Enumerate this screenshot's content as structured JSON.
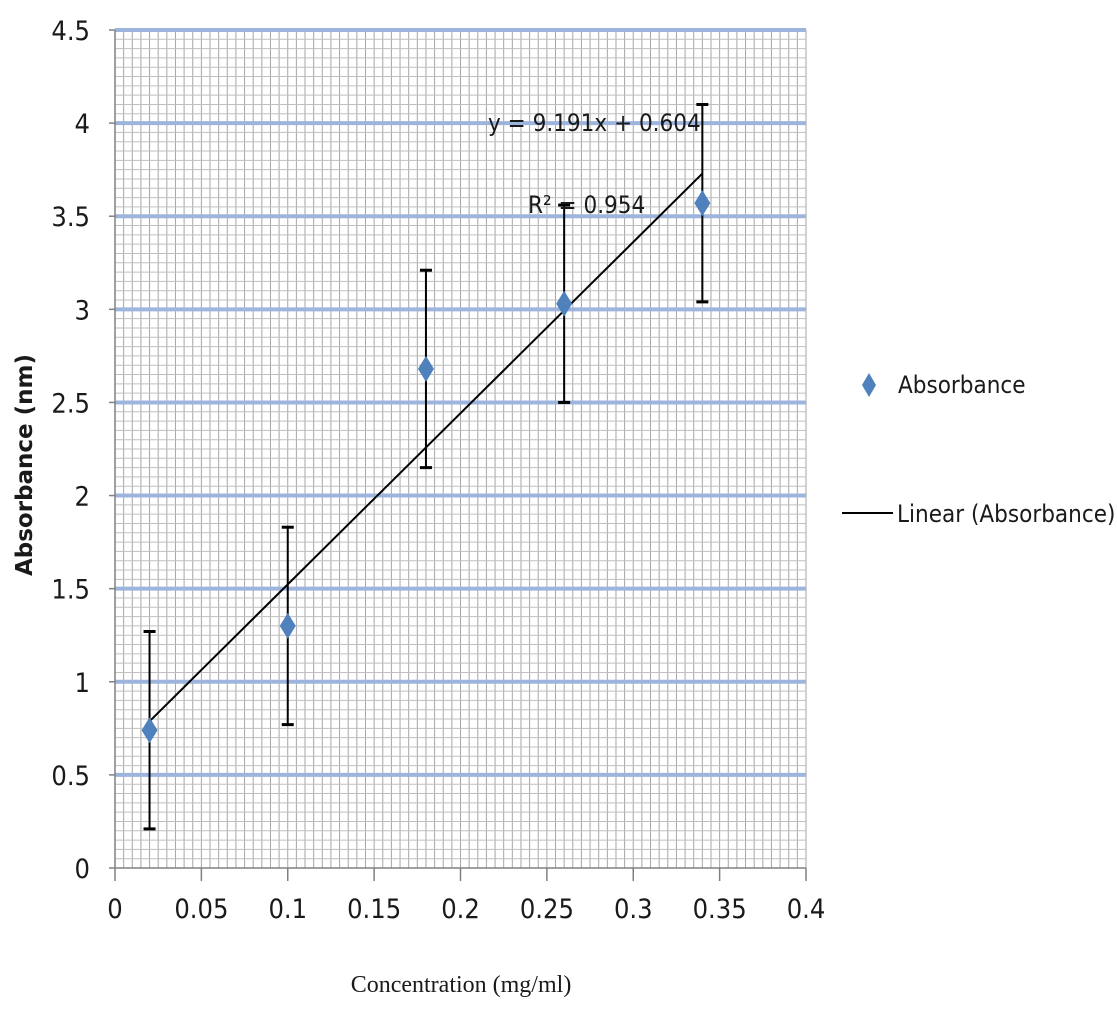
{
  "chart_data": {
    "type": "scatter",
    "xlabel": "Concentration (mg/ml)",
    "ylabel": "Absorbance (nm)",
    "xlim": [
      0,
      0.4
    ],
    "ylim": [
      0,
      4.5
    ],
    "xticks": [
      "0",
      "0.05",
      "0.1",
      "0.15",
      "0.2",
      "0.25",
      "0.3",
      "0.35",
      "0.4"
    ],
    "yticks": [
      "0",
      "0.5",
      "1",
      "1.5",
      "2",
      "2.5",
      "3",
      "3.5",
      "4",
      "4.5"
    ],
    "grid": true,
    "legend_position": "right",
    "series": [
      {
        "name": "Absorbance",
        "marker": "diamond",
        "color": "#4f81bd",
        "x": [
          0.02,
          0.1,
          0.18,
          0.26,
          0.34
        ],
        "y": [
          0.74,
          1.3,
          2.68,
          3.03,
          3.57
        ],
        "error": [
          0.53,
          0.53,
          0.53,
          0.53,
          0.53
        ]
      }
    ],
    "trendline": {
      "name": "Linear (Absorbance)",
      "slope": 9.191,
      "intercept": 0.604,
      "x_range": [
        0.02,
        0.34
      ],
      "color": "#000000",
      "equation": "y = 9.191x + 0.604",
      "r2_label": "R² = 0.954"
    }
  }
}
